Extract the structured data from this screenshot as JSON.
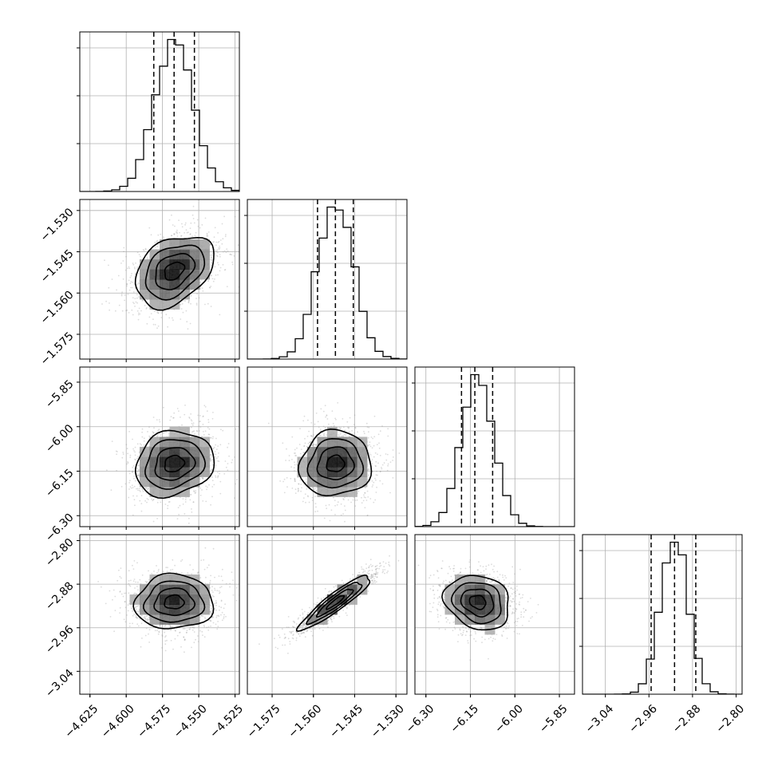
{
  "chart_data": {
    "type": "corner",
    "grid": true,
    "parameters": [
      {
        "index": 0,
        "range": [
          -4.632,
          -4.522
        ],
        "ticks": [
          -4.625,
          -4.6,
          -4.575,
          -4.55,
          -4.525
        ],
        "tick_labels": [
          "−4.625",
          "−4.600",
          "−4.575",
          "−4.550",
          "−4.525"
        ],
        "mean": -4.567,
        "sd": 0.0135,
        "quantiles": [
          -4.581,
          -4.567,
          -4.553
        ]
      },
      {
        "index": 1,
        "range": [
          -1.584,
          -1.526
        ],
        "ticks": [
          -1.575,
          -1.56,
          -1.545,
          -1.53
        ],
        "tick_labels": [
          "−1.575",
          "−1.560",
          "−1.545",
          "−1.530"
        ],
        "mean": -1.552,
        "sd": 0.0065,
        "quantiles": [
          -1.5585,
          -1.552,
          -1.5455
        ]
      },
      {
        "index": 2,
        "range": [
          -6.337,
          -5.799
        ],
        "ticks": [
          -6.3,
          -6.15,
          -6.0,
          -5.85
        ],
        "tick_labels": [
          "−6.30",
          "−6.15",
          "−6.00",
          "−5.85"
        ],
        "mean": -6.125,
        "sd": 0.055,
        "quantiles": [
          -6.18,
          -6.135,
          -6.075
        ]
      },
      {
        "index": 3,
        "range": [
          -3.082,
          -2.789
        ],
        "ticks": [
          -3.04,
          -2.96,
          -2.88,
          -2.8
        ],
        "tick_labels": [
          "−3.04",
          "−2.96",
          "−2.88",
          "−2.80"
        ],
        "mean": -2.913,
        "sd": 0.025,
        "quantiles": [
          -2.956,
          -2.913,
          -2.874
        ]
      }
    ],
    "correlations": {
      "1-0": 0.35,
      "2-0": 0.15,
      "2-1": 0.05,
      "3-0": 0.02,
      "3-1": 0.92,
      "3-2": -0.18
    },
    "contour_levels_sigma": [
      0.5,
      1.0,
      1.5,
      2.0
    ]
  }
}
